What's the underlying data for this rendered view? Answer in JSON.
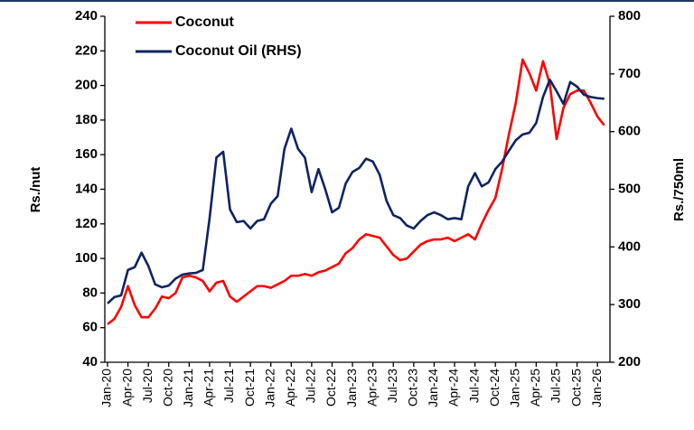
{
  "chart_data": {
    "type": "line",
    "categories": [
      "Jan-20",
      null,
      null,
      "Apr-20",
      null,
      null,
      "Jul-20",
      null,
      null,
      "Oct-20",
      null,
      null,
      "Jan-21",
      null,
      null,
      "Apr-21",
      null,
      null,
      "Jul-21",
      null,
      null,
      "Oct-21",
      null,
      null,
      "Jan-22",
      null,
      null,
      "Apr-22",
      null,
      null,
      "Jul-22",
      null,
      null,
      "Oct-22",
      null,
      null,
      "Jan-23",
      null,
      null,
      "Apr-23",
      null,
      null,
      "Jul-23",
      null,
      null,
      "Oct-23",
      null,
      null,
      "Jan-24",
      null,
      null,
      "Apr-24",
      null,
      null,
      "Jul-24",
      null,
      null,
      "Oct-24",
      null,
      null,
      "Jan-25",
      null,
      null,
      "Apr-25",
      null,
      null,
      "Jul-25",
      null,
      null,
      "Oct-25",
      null,
      null,
      "Jan-26",
      null
    ],
    "series": [
      {
        "name": "Coconut",
        "color": "#ff0000",
        "axis": "y",
        "values": [
          62,
          65,
          72,
          84,
          73,
          66,
          66,
          71,
          78,
          77,
          80,
          89,
          90,
          89,
          87,
          81,
          86,
          87,
          78,
          75,
          78,
          81,
          84,
          84,
          83,
          85,
          87,
          90,
          90,
          91,
          90,
          92,
          93,
          95,
          97,
          103,
          106,
          111,
          114,
          113,
          112,
          107,
          102,
          99,
          100,
          104,
          108,
          110,
          111,
          111,
          112,
          110,
          112,
          114,
          111,
          120,
          128,
          135,
          152,
          172,
          190,
          215,
          207,
          197,
          214,
          201,
          169,
          187,
          195,
          197,
          197,
          190,
          182,
          177
        ]
      },
      {
        "name": "Coconut Oil (RHS)",
        "color": "#0e2461",
        "axis": "y2",
        "values": [
          302,
          313,
          316,
          360,
          365,
          390,
          367,
          335,
          330,
          333,
          345,
          352,
          354,
          355,
          360,
          450,
          555,
          565,
          465,
          443,
          445,
          432,
          445,
          448,
          475,
          488,
          570,
          605,
          570,
          555,
          495,
          535,
          500,
          460,
          468,
          510,
          530,
          537,
          553,
          548,
          525,
          480,
          455,
          450,
          437,
          432,
          445,
          455,
          460,
          455,
          448,
          450,
          448,
          505,
          528,
          505,
          512,
          535,
          548,
          567,
          585,
          595,
          598,
          615,
          660,
          690,
          670,
          648,
          686,
          678,
          664,
          660,
          658,
          657
        ]
      }
    ],
    "ylabel": "Rs./nut",
    "y2label": "Rs./750ml",
    "ylim": [
      40,
      240
    ],
    "yticks": [
      40,
      60,
      80,
      100,
      120,
      140,
      160,
      180,
      200,
      220,
      240
    ],
    "y2lim": [
      200,
      800
    ],
    "y2ticks": [
      200,
      300,
      400,
      500,
      600,
      700,
      800
    ],
    "grid": false,
    "legend": "upper left"
  }
}
